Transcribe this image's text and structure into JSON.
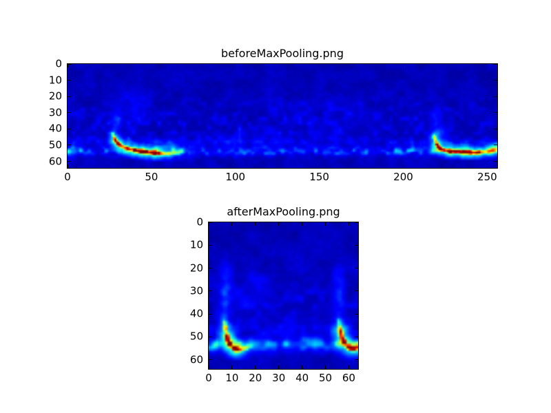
{
  "figure": {
    "background_color": "#ffffff",
    "frame_color": "#000000",
    "text_color": "#000000"
  },
  "chart_data": [
    {
      "type": "heatmap",
      "title": "beforeMaxPooling.png",
      "colormap": "jet",
      "data_width": 256,
      "data_height": 64,
      "x_range": [
        0,
        256
      ],
      "y_range": [
        0,
        64
      ],
      "x_ticks": [
        0,
        50,
        100,
        150,
        200,
        250
      ],
      "y_ticks": [
        0,
        10,
        20,
        30,
        40,
        50,
        60
      ],
      "grid": false,
      "legend": false,
      "seed": 7,
      "background_level": 0.015,
      "bands": [
        {
          "y": 53.3,
          "sigma": 1.6,
          "amplitude": 0.2
        },
        {
          "y": 47.3,
          "sigma": 1.7,
          "amplitude": 0.06
        }
      ],
      "speckle": {
        "center_y": 40,
        "sigma": 13,
        "amplitude": 0.09
      },
      "clouds": [
        [
          28,
          35,
          2.5,
          5,
          0.11
        ],
        [
          40,
          29,
          5,
          7,
          0.05
        ],
        [
          34,
          20,
          4,
          5,
          0.04
        ],
        [
          62,
          50,
          8,
          2.5,
          0.09
        ],
        [
          3,
          53,
          2.5,
          1.8,
          0.26
        ],
        [
          219,
          34,
          2,
          5,
          0.1
        ],
        [
          223,
          42,
          3,
          3,
          0.09
        ],
        [
          208,
          50,
          6,
          2,
          0.07
        ],
        [
          253.5,
          52.5,
          3,
          2,
          0.3
        ],
        [
          150,
          30,
          30,
          10,
          0.015
        ],
        [
          100,
          45,
          15,
          3,
          0.045
        ]
      ],
      "features": [
        {
          "name": "left-chirp",
          "points": [
            [
              26.5,
              42.5,
              0.35,
              0.8
            ],
            [
              27.2,
              44.5,
              0.65,
              0.9
            ],
            [
              28,
              46.5,
              0.9,
              1.0
            ],
            [
              29.5,
              48.5,
              1.0,
              1.0
            ],
            [
              31.5,
              50,
              0.95,
              1.05
            ],
            [
              34,
              51,
              1.0,
              1.1
            ],
            [
              37,
              52,
              0.9,
              1.1
            ],
            [
              40,
              52.6,
              0.95,
              1.1
            ],
            [
              43,
              53.2,
              1.0,
              1.1
            ],
            [
              46,
              53.6,
              0.9,
              1.1
            ],
            [
              49,
              54,
              1.0,
              1.1
            ],
            [
              52,
              54.3,
              0.95,
              1.1
            ],
            [
              55,
              54.6,
              0.8,
              1.05
            ],
            [
              58,
              54.8,
              0.6,
              1.0
            ],
            [
              61,
              54.6,
              0.45,
              1.0
            ],
            [
              64,
              54.2,
              0.3,
              1.0
            ],
            [
              68,
              53.8,
              0.2,
              1.0
            ]
          ]
        },
        {
          "name": "right-chirp",
          "points": [
            [
              217.5,
              42.5,
              0.3,
              0.8
            ],
            [
              218,
              44.5,
              0.55,
              0.9
            ],
            [
              218.6,
              46.5,
              0.75,
              1.0
            ],
            [
              219.4,
              48.5,
              0.9,
              1.0
            ],
            [
              220.4,
              50.5,
              1.0,
              1.0
            ],
            [
              222,
              52,
              0.95,
              1.05
            ],
            [
              225,
              52.8,
              0.85,
              1.1
            ],
            [
              228,
              53.2,
              0.95,
              1.1
            ],
            [
              231,
              53.4,
              0.85,
              1.1
            ],
            [
              234,
              53.6,
              0.95,
              1.1
            ],
            [
              237,
              53.8,
              1.0,
              1.1
            ],
            [
              240,
              54,
              0.9,
              1.1
            ],
            [
              243,
              54,
              0.75,
              1.1
            ],
            [
              246,
              53.8,
              0.6,
              1.1
            ],
            [
              249,
              53.4,
              0.5,
              1.1
            ],
            [
              252,
              52.8,
              0.42,
              1.2
            ],
            [
              255.5,
              52.3,
              0.38,
              1.2
            ]
          ]
        }
      ]
    },
    {
      "type": "heatmap",
      "title": "afterMaxPooling.png",
      "colormap": "jet",
      "data_width": 64,
      "data_height": 64,
      "x_range": [
        0,
        64
      ],
      "y_range": [
        0,
        64
      ],
      "x_ticks": [
        0,
        10,
        20,
        30,
        40,
        50,
        60
      ],
      "y_ticks": [
        0,
        10,
        20,
        30,
        40,
        50,
        60
      ],
      "grid": false,
      "legend": false,
      "seed": 13,
      "background_level": 0.015,
      "bands": [
        {
          "y": 52.8,
          "sigma": 1.9,
          "amplitude": 0.19
        },
        {
          "y": 46.5,
          "sigma": 1.8,
          "amplitude": 0.055
        }
      ],
      "speckle": {
        "center_y": 38,
        "sigma": 12,
        "amplitude": 0.085
      },
      "clouds": [
        [
          6.5,
          33,
          1.5,
          6,
          0.12
        ],
        [
          7,
          23,
          2,
          5,
          0.06
        ],
        [
          55.5,
          32,
          1.5,
          6,
          0.12
        ],
        [
          55,
          22,
          2,
          4,
          0.05
        ],
        [
          1.5,
          53.5,
          1.5,
          1.5,
          0.2
        ],
        [
          63,
          53,
          1.5,
          1.5,
          0.24
        ],
        [
          20,
          52,
          5,
          2,
          0.07
        ],
        [
          38,
          51.5,
          7,
          2.5,
          0.055
        ],
        [
          30,
          30,
          20,
          12,
          0.012
        ]
      ],
      "features": [
        {
          "name": "left-chirp",
          "points": [
            [
              6.2,
              43,
              0.35,
              0.7
            ],
            [
              6.5,
              45,
              0.6,
              0.8
            ],
            [
              6.8,
              47,
              0.85,
              0.9
            ],
            [
              7.2,
              49,
              1.0,
              1.0
            ],
            [
              7.7,
              51,
              1.0,
              1.0
            ],
            [
              8.5,
              52.8,
              0.95,
              1.0
            ],
            [
              9.8,
              54,
              0.9,
              1.0
            ],
            [
              11.2,
              54.8,
              1.0,
              1.0
            ],
            [
              12.8,
              55,
              0.85,
              0.95
            ],
            [
              14.2,
              54.6,
              0.55,
              0.9
            ],
            [
              15.8,
              54,
              0.35,
              0.9
            ],
            [
              17.2,
              53.6,
              0.22,
              0.9
            ]
          ]
        },
        {
          "name": "right-chirp",
          "points": [
            [
              55.2,
              42.5,
              0.3,
              0.7
            ],
            [
              55.5,
              44.5,
              0.5,
              0.8
            ],
            [
              55.8,
              46.5,
              0.7,
              0.9
            ],
            [
              56.2,
              48.5,
              0.9,
              1.0
            ],
            [
              56.8,
              50.5,
              1.0,
              1.0
            ],
            [
              57.6,
              52.3,
              0.95,
              1.0
            ],
            [
              58.8,
              53.5,
              0.9,
              1.0
            ],
            [
              60.2,
              54.4,
              0.95,
              1.0
            ],
            [
              61.6,
              54.8,
              0.85,
              0.95
            ],
            [
              63,
              54.2,
              0.55,
              0.95
            ],
            [
              63.9,
              53.6,
              0.4,
              0.9
            ]
          ]
        }
      ]
    }
  ]
}
